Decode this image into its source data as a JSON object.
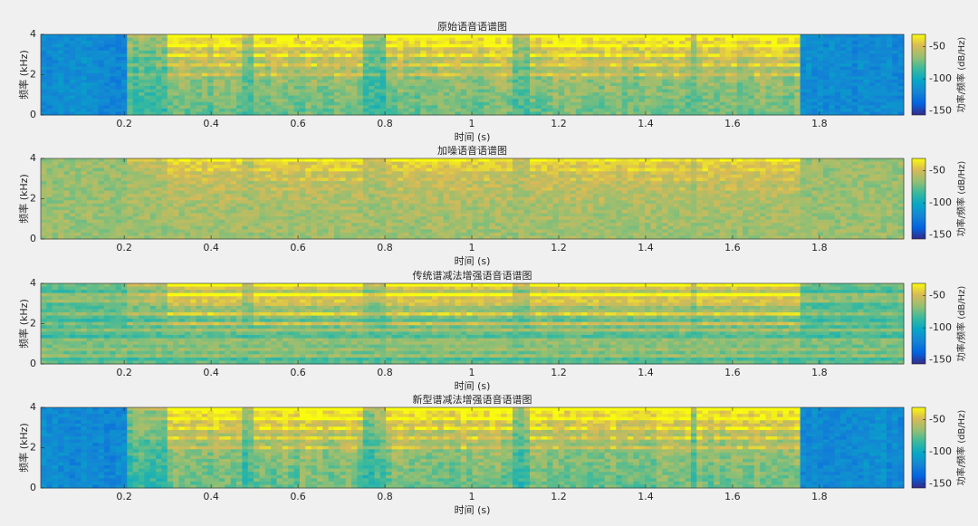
{
  "chart_data": [
    {
      "type": "heatmap",
      "title": "原始语音语谱图",
      "xlabel": "时间 (s)",
      "ylabel": "频率 (kHz)",
      "xlim": [
        0.008,
        1.994
      ],
      "xticks": [
        0.2,
        0.4,
        0.6,
        0.8,
        1,
        1.2,
        1.4,
        1.6,
        1.8
      ],
      "ylim": [
        0,
        4
      ],
      "yticks": [
        0,
        2,
        4
      ],
      "colorbar": {
        "label": "功率/频率 (dB/Hz)",
        "lim": [
          -156,
          -31
        ],
        "ticks": [
          -150,
          -100,
          -50
        ]
      }
    },
    {
      "type": "heatmap",
      "title": "加噪语音语谱图",
      "xlabel": "时间 (s)",
      "ylabel": "频率 (kHz)",
      "xlim": [
        0.008,
        1.994
      ],
      "xticks": [
        0.2,
        0.4,
        0.6,
        0.8,
        1,
        1.2,
        1.4,
        1.6,
        1.8
      ],
      "ylim": [
        0,
        4
      ],
      "yticks": [
        0,
        2,
        4
      ],
      "colorbar": {
        "label": "功率/频率 (dB/Hz)",
        "lim": [
          -156,
          -31
        ],
        "ticks": [
          -150,
          -100,
          -50
        ]
      }
    },
    {
      "type": "heatmap",
      "title": "传统谱减法增强语音语谱图",
      "xlabel": "时间 (s)",
      "ylabel": "频率 (kHz)",
      "xlim": [
        0.008,
        1.994
      ],
      "xticks": [
        0.2,
        0.4,
        0.6,
        0.8,
        1,
        1.2,
        1.4,
        1.6,
        1.8
      ],
      "ylim": [
        0,
        4
      ],
      "yticks": [
        0,
        2,
        4
      ],
      "colorbar": {
        "label": "功率/频率 (dB/Hz)",
        "lim": [
          -156,
          -31
        ],
        "ticks": [
          -150,
          -100,
          -50
        ]
      }
    },
    {
      "type": "heatmap",
      "title": "新型谱减法增强语音语谱图",
      "xlabel": "时间 (s)",
      "ylabel": "频率 (kHz)",
      "xlim": [
        0.008,
        1.994
      ],
      "xticks": [
        0.2,
        0.4,
        0.6,
        0.8,
        1,
        1.2,
        1.4,
        1.6,
        1.8
      ],
      "ylim": [
        0,
        4
      ],
      "yticks": [
        0,
        2,
        4
      ],
      "colorbar": {
        "label": "功率/频率 (dB/Hz)",
        "lim": [
          -156,
          -31
        ],
        "ticks": [
          -150,
          -100,
          -50
        ]
      }
    }
  ]
}
